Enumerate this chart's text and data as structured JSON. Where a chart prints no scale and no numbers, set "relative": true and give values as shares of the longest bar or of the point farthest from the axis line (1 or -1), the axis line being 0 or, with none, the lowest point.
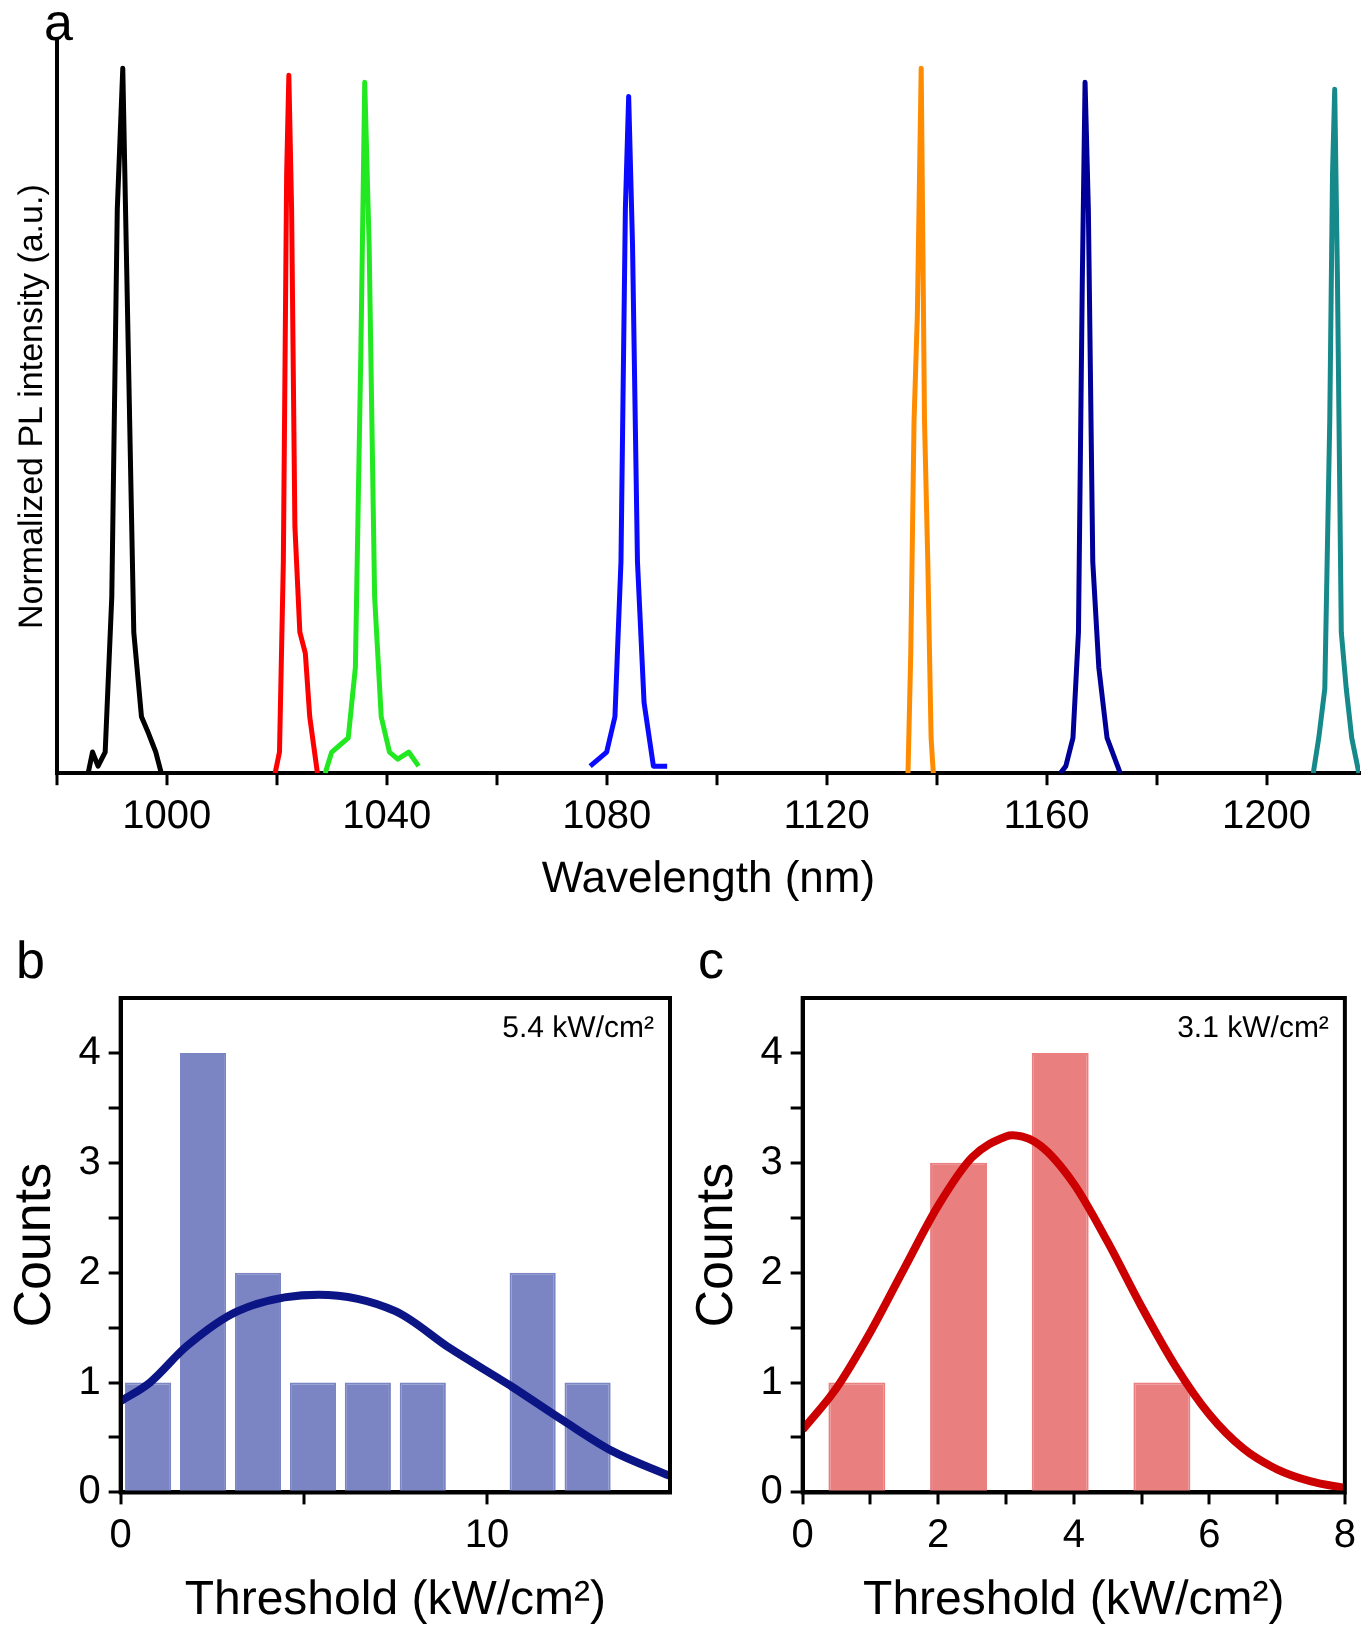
{
  "chart_data": [
    {
      "type": "line",
      "title": "a",
      "xlabel": "Wavelength (nm)",
      "ylabel": "Normalized PL intensity (a.u.)",
      "relative": true,
      "xlim": [
        980,
        1217
      ],
      "xticks": [
        {
          "value": 980,
          "label": null
        },
        1000,
        {
          "value": 1020,
          "label": null
        },
        1040,
        {
          "value": 1060,
          "label": null
        },
        1080,
        {
          "value": 1100,
          "label": null
        },
        1120,
        {
          "value": 1140,
          "label": null
        },
        1160,
        {
          "value": 1180,
          "label": null
        },
        1200
      ],
      "grid": false,
      "legend": false,
      "series": [
        {
          "color": "#000000",
          "x": [
            985.7,
            986.5,
            987.5,
            988.8,
            990,
            991,
            992,
            993,
            994,
            995.4,
            996.5,
            997.5,
            998,
            999
          ],
          "values": [
            0,
            0.03,
            0.01,
            0.03,
            0.25,
            0.8,
            1,
            0.6,
            0.2,
            0.08,
            0.06,
            0.04,
            0.03,
            0
          ]
        },
        {
          "color": "#ff0000",
          "x": [
            1019.7,
            1020.5,
            1021.2,
            1021.8,
            1022.2,
            1022.7,
            1023.3,
            1024.2,
            1025.2,
            1026,
            1027.4
          ],
          "values": [
            0,
            0.03,
            0.3,
            0.85,
            0.99,
            0.8,
            0.35,
            0.2,
            0.17,
            0.08,
            0
          ]
        },
        {
          "color": "#22e822",
          "x": [
            1028.8,
            1030,
            1031.5,
            1033,
            1034.3,
            1035.3,
            1036,
            1036.8,
            1037.8,
            1039,
            1040.5,
            1042,
            1044,
            1045.8
          ],
          "values": [
            0,
            0.03,
            0.04,
            0.05,
            0.15,
            0.6,
            0.98,
            0.75,
            0.25,
            0.08,
            0.03,
            0.02,
            0.03,
            0.01
          ]
        },
        {
          "color": "#0a0aff",
          "x": [
            1077,
            1078.5,
            1080,
            1081.5,
            1082.6,
            1083.4,
            1084,
            1084.7,
            1085.6,
            1086.8,
            1088.5,
            1091
          ],
          "values": [
            0.01,
            0.02,
            0.03,
            0.08,
            0.3,
            0.8,
            0.96,
            0.75,
            0.3,
            0.1,
            0.01,
            0.01
          ]
        },
        {
          "color": "#ff8c00",
          "x": [
            1134.8,
            1135.3,
            1135.9,
            1136.5,
            1137.2,
            1137.8,
            1138.4,
            1139,
            1139.4
          ],
          "values": [
            0,
            0.17,
            0.5,
            0.65,
            1,
            0.5,
            0.3,
            0.05,
            0
          ]
        },
        {
          "color": "#000099",
          "x": [
            1162.5,
            1163.5,
            1164.8,
            1165.8,
            1166.5,
            1167,
            1167.6,
            1168.4,
            1169.5,
            1171,
            1173.4
          ],
          "values": [
            0,
            0.01,
            0.05,
            0.2,
            0.7,
            0.98,
            0.8,
            0.3,
            0.15,
            0.05,
            0
          ]
        },
        {
          "color": "#168a8a",
          "x": [
            1208.5,
            1209.5,
            1210.6,
            1211.5,
            1212,
            1212.4,
            1212.9,
            1213.6,
            1214.5,
            1215.5,
            1216.8
          ],
          "values": [
            0,
            0.05,
            0.12,
            0.5,
            0.85,
            0.97,
            0.7,
            0.2,
            0.12,
            0.05,
            0
          ]
        }
      ]
    },
    {
      "type": "histogram",
      "title": "b",
      "xlabel": "Threshold (kW/cm²)",
      "ylabel": "Counts",
      "annotations": [
        "5.4 kW/cm²"
      ],
      "bins": [
        0,
        1.5,
        3,
        4.5,
        6,
        7.5,
        9,
        10.5,
        12,
        13.5
      ],
      "values": [
        1,
        4,
        2,
        1,
        1,
        1,
        0,
        2,
        1
      ],
      "color": "#7b85c4",
      "xlim": [
        0,
        15
      ],
      "ylim": [
        0,
        4.5
      ],
      "xticks": [
        0,
        {
          "value": 5,
          "label": null
        },
        10
      ],
      "yticks": [
        0,
        {
          "value": 0.5,
          "label": null
        },
        1,
        {
          "value": 1.5,
          "label": null
        },
        2,
        {
          "value": 2.5,
          "label": null
        },
        3,
        {
          "value": 3.5,
          "label": null
        },
        4
      ],
      "grid": false,
      "legend": false,
      "series": [
        {
          "type": "line",
          "color": "#0b1585",
          "x": [
            0,
            0.8,
            1.8,
            3.2,
            5.4,
            7.5,
            9,
            10.6,
            12.1,
            13.4,
            15
          ],
          "values": [
            0.83,
            1,
            1.33,
            1.65,
            1.8,
            1.65,
            1.31,
            0.98,
            0.65,
            0.38,
            0.15
          ]
        }
      ]
    },
    {
      "type": "histogram",
      "title": "c",
      "xlabel": "Threshold (kW/cm²)",
      "ylabel": "Counts",
      "annotations": [
        "3.1 kW/cm²"
      ],
      "bins": [
        0.05,
        1.55,
        3.05,
        4.55,
        6.05
      ],
      "values": [
        1,
        3,
        4,
        1
      ],
      "color": "#ea7f80",
      "xlim": [
        0,
        8
      ],
      "ylim": [
        0,
        4.5
      ],
      "xticks": [
        0,
        {
          "value": 1,
          "label": null
        },
        2,
        {
          "value": 3,
          "label": null
        },
        4,
        {
          "value": 5,
          "label": null
        },
        6,
        {
          "value": 7,
          "label": null
        },
        8
      ],
      "yticks": [
        0,
        {
          "value": 0.5,
          "label": null
        },
        1,
        {
          "value": 1.5,
          "label": null
        },
        2,
        {
          "value": 2.5,
          "label": null
        },
        3,
        {
          "value": 3.5,
          "label": null
        },
        4
      ],
      "grid": false,
      "legend": false,
      "series": [
        {
          "type": "line",
          "color": "#cc0000",
          "x": [
            0,
            0.5,
            1,
            1.5,
            2,
            2.5,
            3,
            3.1,
            3.5,
            4,
            4.5,
            5,
            5.5,
            6,
            6.5,
            7,
            7.5,
            8
          ],
          "values": [
            0.57,
            0.95,
            1.46,
            2.04,
            2.61,
            3.05,
            3.24,
            3.25,
            3.16,
            2.81,
            2.28,
            1.69,
            1.15,
            0.71,
            0.4,
            0.21,
            0.1,
            0.04
          ]
        }
      ]
    }
  ]
}
